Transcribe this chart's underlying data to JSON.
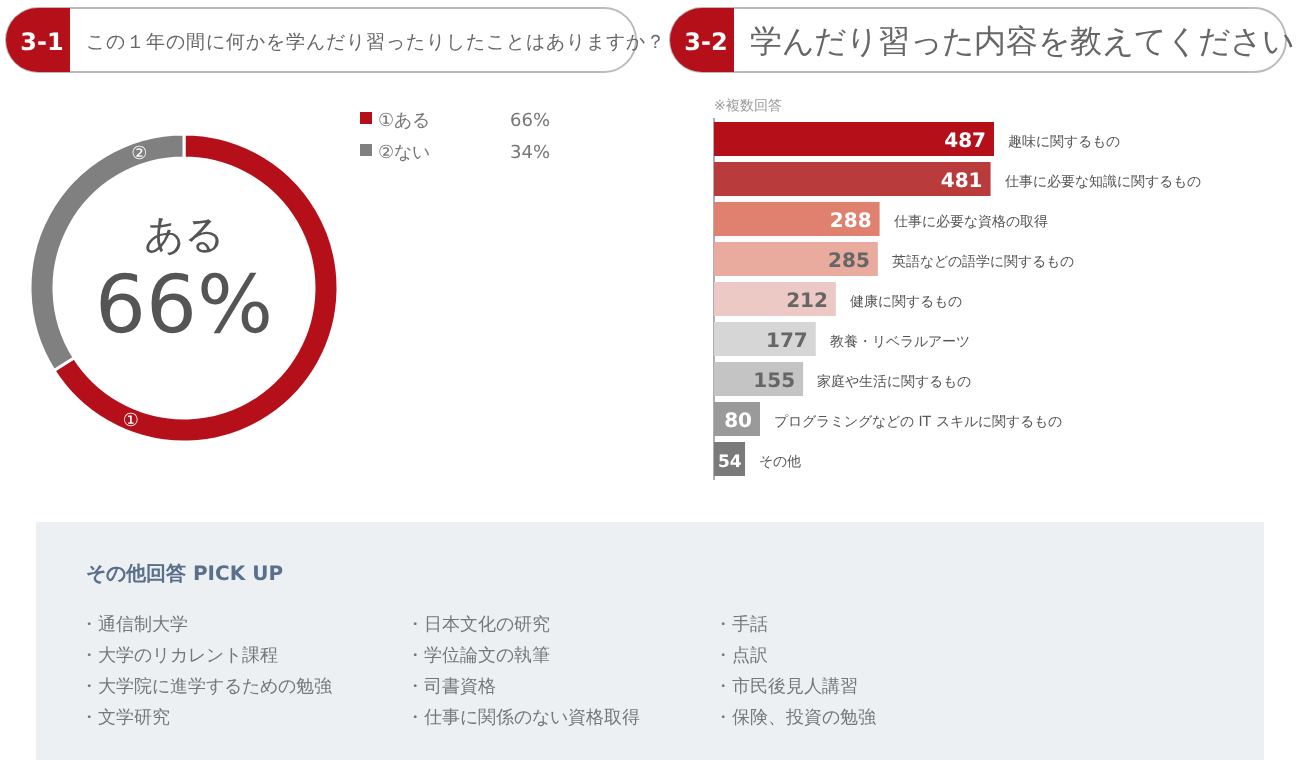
{
  "chart_data": [
    {
      "type": "donut",
      "title": "この１年の間に何かを学んだり習ったりしたことはありますか？",
      "subtitle": "3-1",
      "categories": [
        "①ある",
        "②ない"
      ],
      "values": [
        66,
        34
      ],
      "colors": [
        "#b5101a",
        "#808080"
      ],
      "value_labels": [
        "66%",
        "34%"
      ],
      "legend": "right",
      "annotations": [
        "①",
        "②",
        "ある",
        "66%"
      ]
    },
    {
      "type": "bar",
      "orientation": "horizontal",
      "title": "学んだり習った内容を教えてください",
      "subtitle": "3-2",
      "annotations": [
        "※複数回答"
      ],
      "categories": [
        "趣味に関するもの",
        "仕事に必要な知識に関するもの",
        "仕事に必要な資格の取得",
        "英語などの語学に関するもの",
        "健康に関するもの",
        "教養・リベラルアーツ",
        "家庭や生活に関するもの",
        "プログラミングなどの IT スキルに関するもの",
        "その他"
      ],
      "values": [
        487,
        481,
        288,
        285,
        212,
        177,
        155,
        80,
        54
      ],
      "colors": [
        "#b5101a",
        "#ba3b3b",
        "#e0806f",
        "#e9ab9d",
        "#edc9c5",
        "#d6d6d6",
        "#c4c4c4",
        "#9a9a9a",
        "#7a7a7a"
      ],
      "data_labels": true
    },
    {
      "type": "other",
      "title": "その他回答 PICK UP",
      "annotations": [
        "・通信制大学",
        "・大学のリカレント課程",
        "・大学院に進学するための勉強",
        "・文学研究",
        "・日本文化の研究",
        "・学位論文の執筆",
        "・司書資格",
        "・仕事に関係のない資格取得",
        "・手話",
        "・点訳",
        "・市民後見人講習",
        "・保険、投資の勉強"
      ]
    }
  ]
}
